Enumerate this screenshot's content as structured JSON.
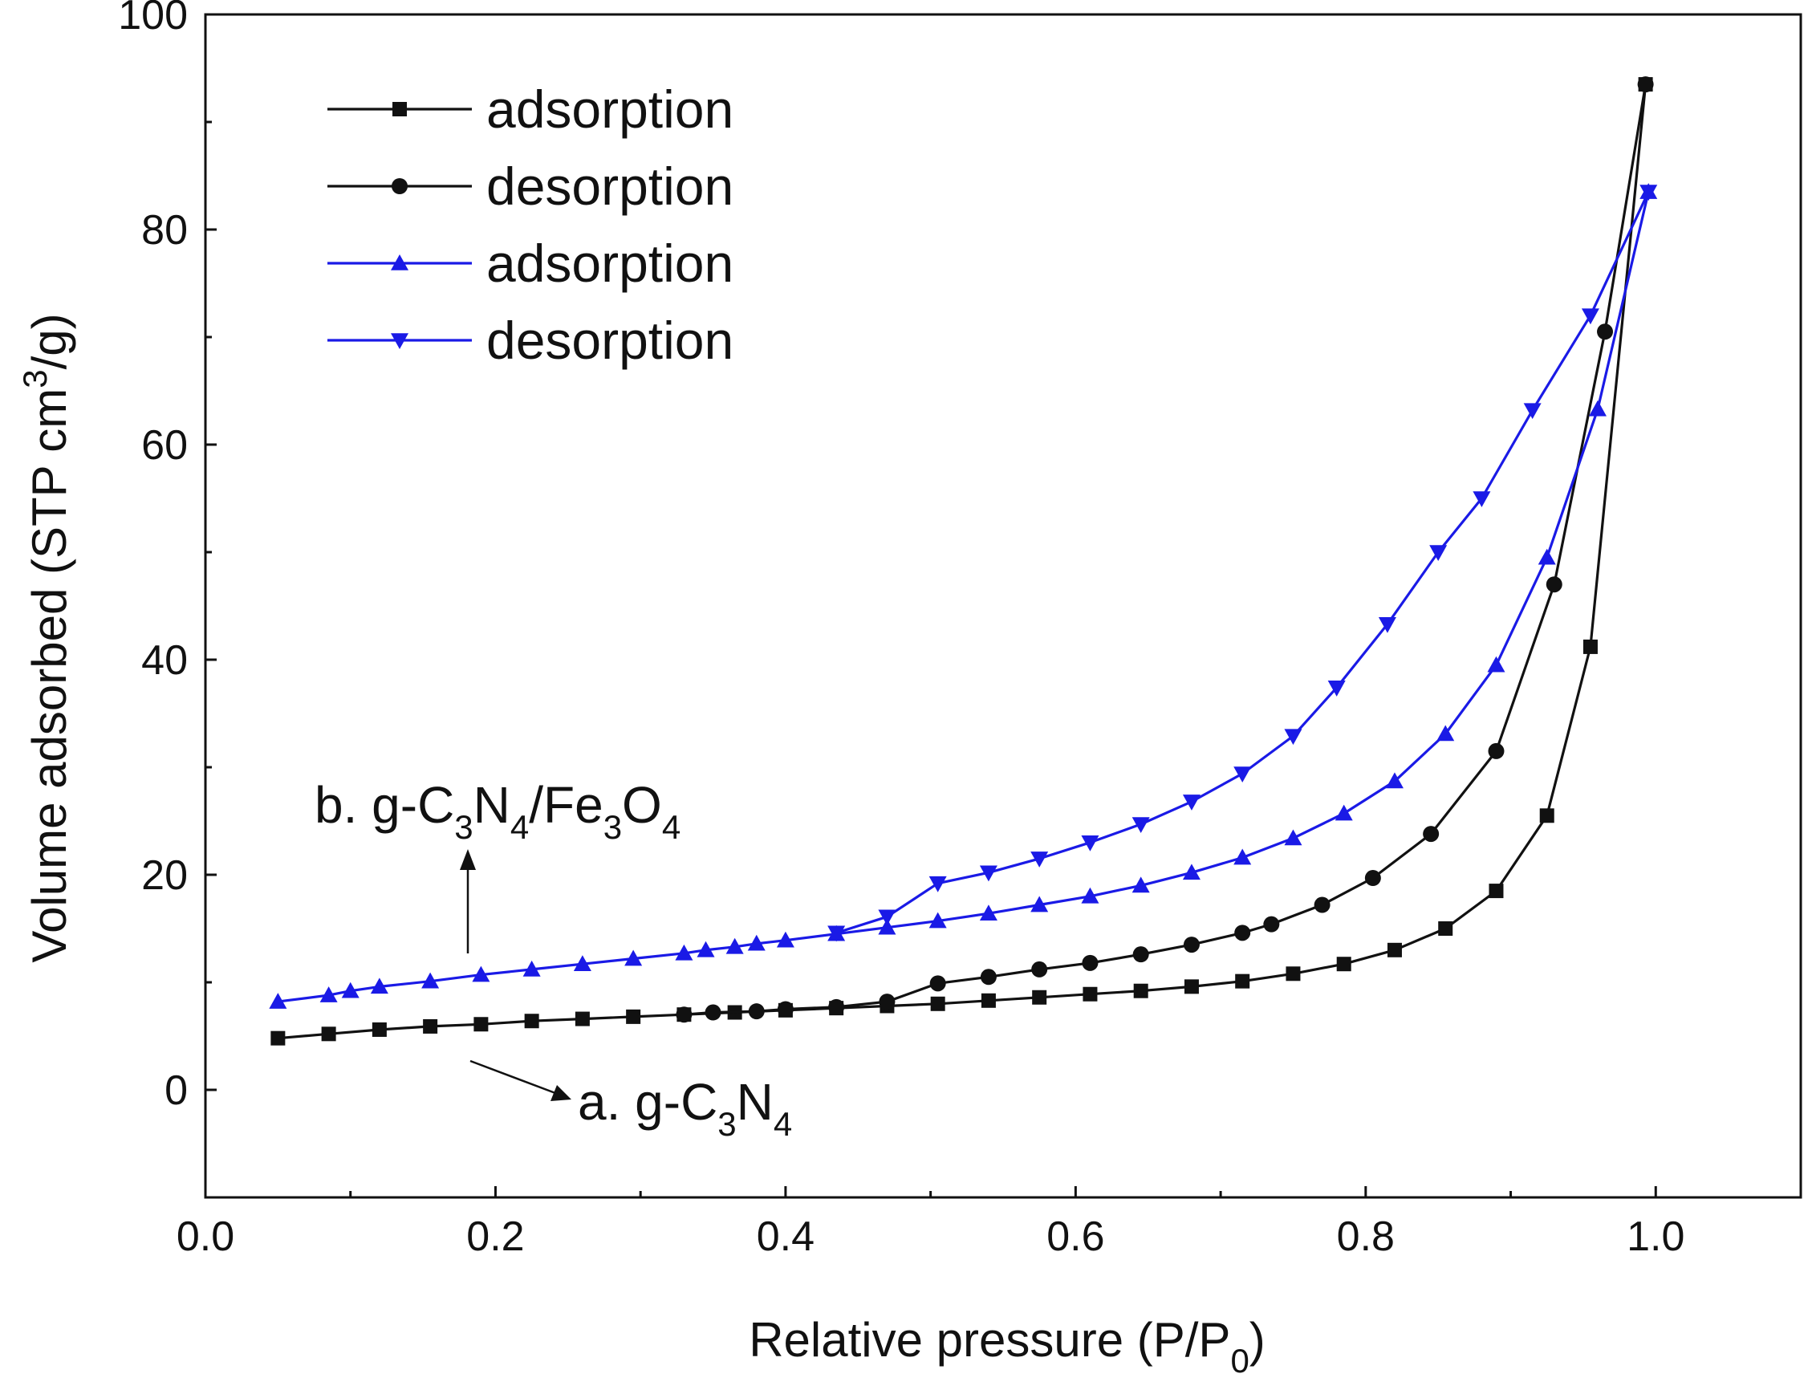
{
  "chart_data": {
    "type": "line",
    "title": "",
    "xlabel": "Relative pressure (P/P0)",
    "xlabel_parts": {
      "main": "Relative pressure (P/P",
      "sub": "0",
      "tail": ")"
    },
    "ylabel": "Volume adsorbed (STP cm3/g)",
    "ylabel_parts": {
      "main": "Volume adsorbed (STP cm",
      "sup": "3",
      "tail": "/g)"
    },
    "xlim": [
      0.0,
      1.1
    ],
    "ylim": [
      -10,
      100
    ],
    "xticks": [
      0.0,
      0.2,
      0.4,
      0.6,
      0.8,
      1.0
    ],
    "xtick_labels": [
      "0.0",
      "0.2",
      "0.4",
      "0.6",
      "0.8",
      "1.0"
    ],
    "yticks": [
      0,
      20,
      40,
      60,
      80,
      100
    ],
    "ytick_labels": [
      "0",
      "20",
      "40",
      "60",
      "80",
      "100"
    ],
    "grid": false,
    "legend_position": "top-left",
    "colors": {
      "black": "#111111",
      "blue": "#1a1ae6"
    },
    "series": [
      {
        "name": "adsorption",
        "color": "#111111",
        "marker": "square",
        "x": [
          0.05,
          0.085,
          0.12,
          0.155,
          0.19,
          0.225,
          0.26,
          0.295,
          0.33,
          0.365,
          0.4,
          0.435,
          0.47,
          0.505,
          0.54,
          0.575,
          0.61,
          0.645,
          0.68,
          0.715,
          0.75,
          0.785,
          0.82,
          0.855,
          0.89,
          0.925,
          0.955,
          0.993
        ],
        "y": [
          4.8,
          5.2,
          5.6,
          5.9,
          6.1,
          6.4,
          6.6,
          6.8,
          7.0,
          7.2,
          7.4,
          7.6,
          7.8,
          8.0,
          8.3,
          8.6,
          8.9,
          9.2,
          9.6,
          10.1,
          10.8,
          11.7,
          13.0,
          15.0,
          18.5,
          25.5,
          41.2,
          93.5
        ]
      },
      {
        "name": "desorption",
        "color": "#111111",
        "marker": "circle",
        "x": [
          0.993,
          0.965,
          0.93,
          0.89,
          0.845,
          0.805,
          0.77,
          0.735,
          0.715,
          0.68,
          0.645,
          0.61,
          0.575,
          0.54,
          0.505,
          0.47,
          0.435,
          0.4,
          0.38,
          0.35,
          0.33
        ],
        "y": [
          93.5,
          70.5,
          47.0,
          31.5,
          23.8,
          19.7,
          17.2,
          15.4,
          14.6,
          13.5,
          12.6,
          11.8,
          11.2,
          10.5,
          9.9,
          8.2,
          7.7,
          7.5,
          7.3,
          7.2,
          7.0
        ]
      },
      {
        "name": "adsorption",
        "color": "#1a1ae6",
        "marker": "triangle-up",
        "x": [
          0.05,
          0.085,
          0.1,
          0.12,
          0.155,
          0.19,
          0.225,
          0.26,
          0.295,
          0.33,
          0.345,
          0.365,
          0.38,
          0.4,
          0.435,
          0.47,
          0.505,
          0.54,
          0.575,
          0.61,
          0.645,
          0.68,
          0.715,
          0.75,
          0.785,
          0.82,
          0.855,
          0.89,
          0.925,
          0.96,
          0.995
        ],
        "y": [
          8.2,
          8.8,
          9.2,
          9.6,
          10.1,
          10.7,
          11.2,
          11.7,
          12.2,
          12.7,
          13.0,
          13.3,
          13.6,
          13.9,
          14.5,
          15.1,
          15.7,
          16.4,
          17.2,
          18.0,
          19.0,
          20.2,
          21.6,
          23.4,
          25.7,
          28.7,
          33.1,
          39.5,
          49.5,
          63.3,
          83.5
        ]
      },
      {
        "name": "desorption",
        "color": "#1a1ae6",
        "marker": "triangle-down",
        "x": [
          0.995,
          0.955,
          0.915,
          0.88,
          0.85,
          0.815,
          0.78,
          0.75,
          0.715,
          0.68,
          0.645,
          0.61,
          0.575,
          0.54,
          0.505,
          0.47,
          0.435
        ],
        "y": [
          83.5,
          72.0,
          63.2,
          55.0,
          50.0,
          43.3,
          37.4,
          32.9,
          29.4,
          26.8,
          24.7,
          23.0,
          21.5,
          20.2,
          19.2,
          16.1,
          14.6
        ]
      }
    ],
    "annotations": [
      {
        "id": "label-b",
        "text_parts": [
          "b. g-C",
          "3",
          "N",
          "4",
          "/Fe",
          "3",
          "O",
          "4"
        ],
        "text": "b. g-C3N4/Fe3O4"
      },
      {
        "id": "label-a",
        "text_parts": [
          "a. g-C",
          "3",
          "N",
          "4"
        ],
        "text": "a. g-C3N4"
      }
    ]
  }
}
